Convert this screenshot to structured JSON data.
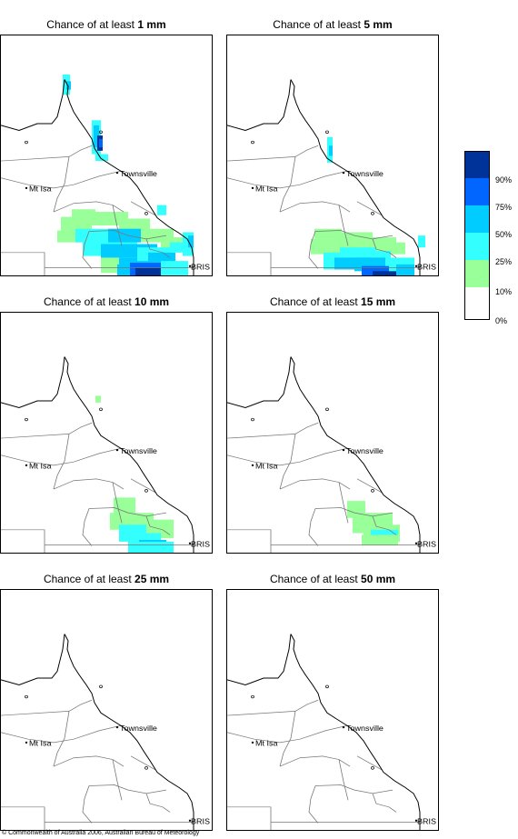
{
  "panels": [
    {
      "prefix": "Chance of at least ",
      "amount": "1 mm",
      "level": 1
    },
    {
      "prefix": "Chance of at least ",
      "amount": "5 mm",
      "level": 2
    },
    {
      "prefix": "Chance of at least ",
      "amount": "10 mm",
      "level": 3
    },
    {
      "prefix": "Chance of at least ",
      "amount": "15 mm",
      "level": 4
    },
    {
      "prefix": "Chance of at least ",
      "amount": "25 mm",
      "level": 5
    },
    {
      "prefix": "Chance of at least ",
      "amount": "50 mm",
      "level": 6
    }
  ],
  "places": {
    "townsville": "Townsville",
    "mt_isa": "Mt Isa",
    "brisbane": "BRIS"
  },
  "legend": {
    "labels": [
      "90%",
      "75%",
      "50%",
      "25%",
      "10%",
      "0%"
    ],
    "colors": [
      "#003399",
      "#0066ff",
      "#00ccff",
      "#33ffff",
      "#99ff99",
      "#ffffff"
    ]
  },
  "copyright": "© Commonwealth of Australia 2006, Australian Bureau of Meteorology"
}
